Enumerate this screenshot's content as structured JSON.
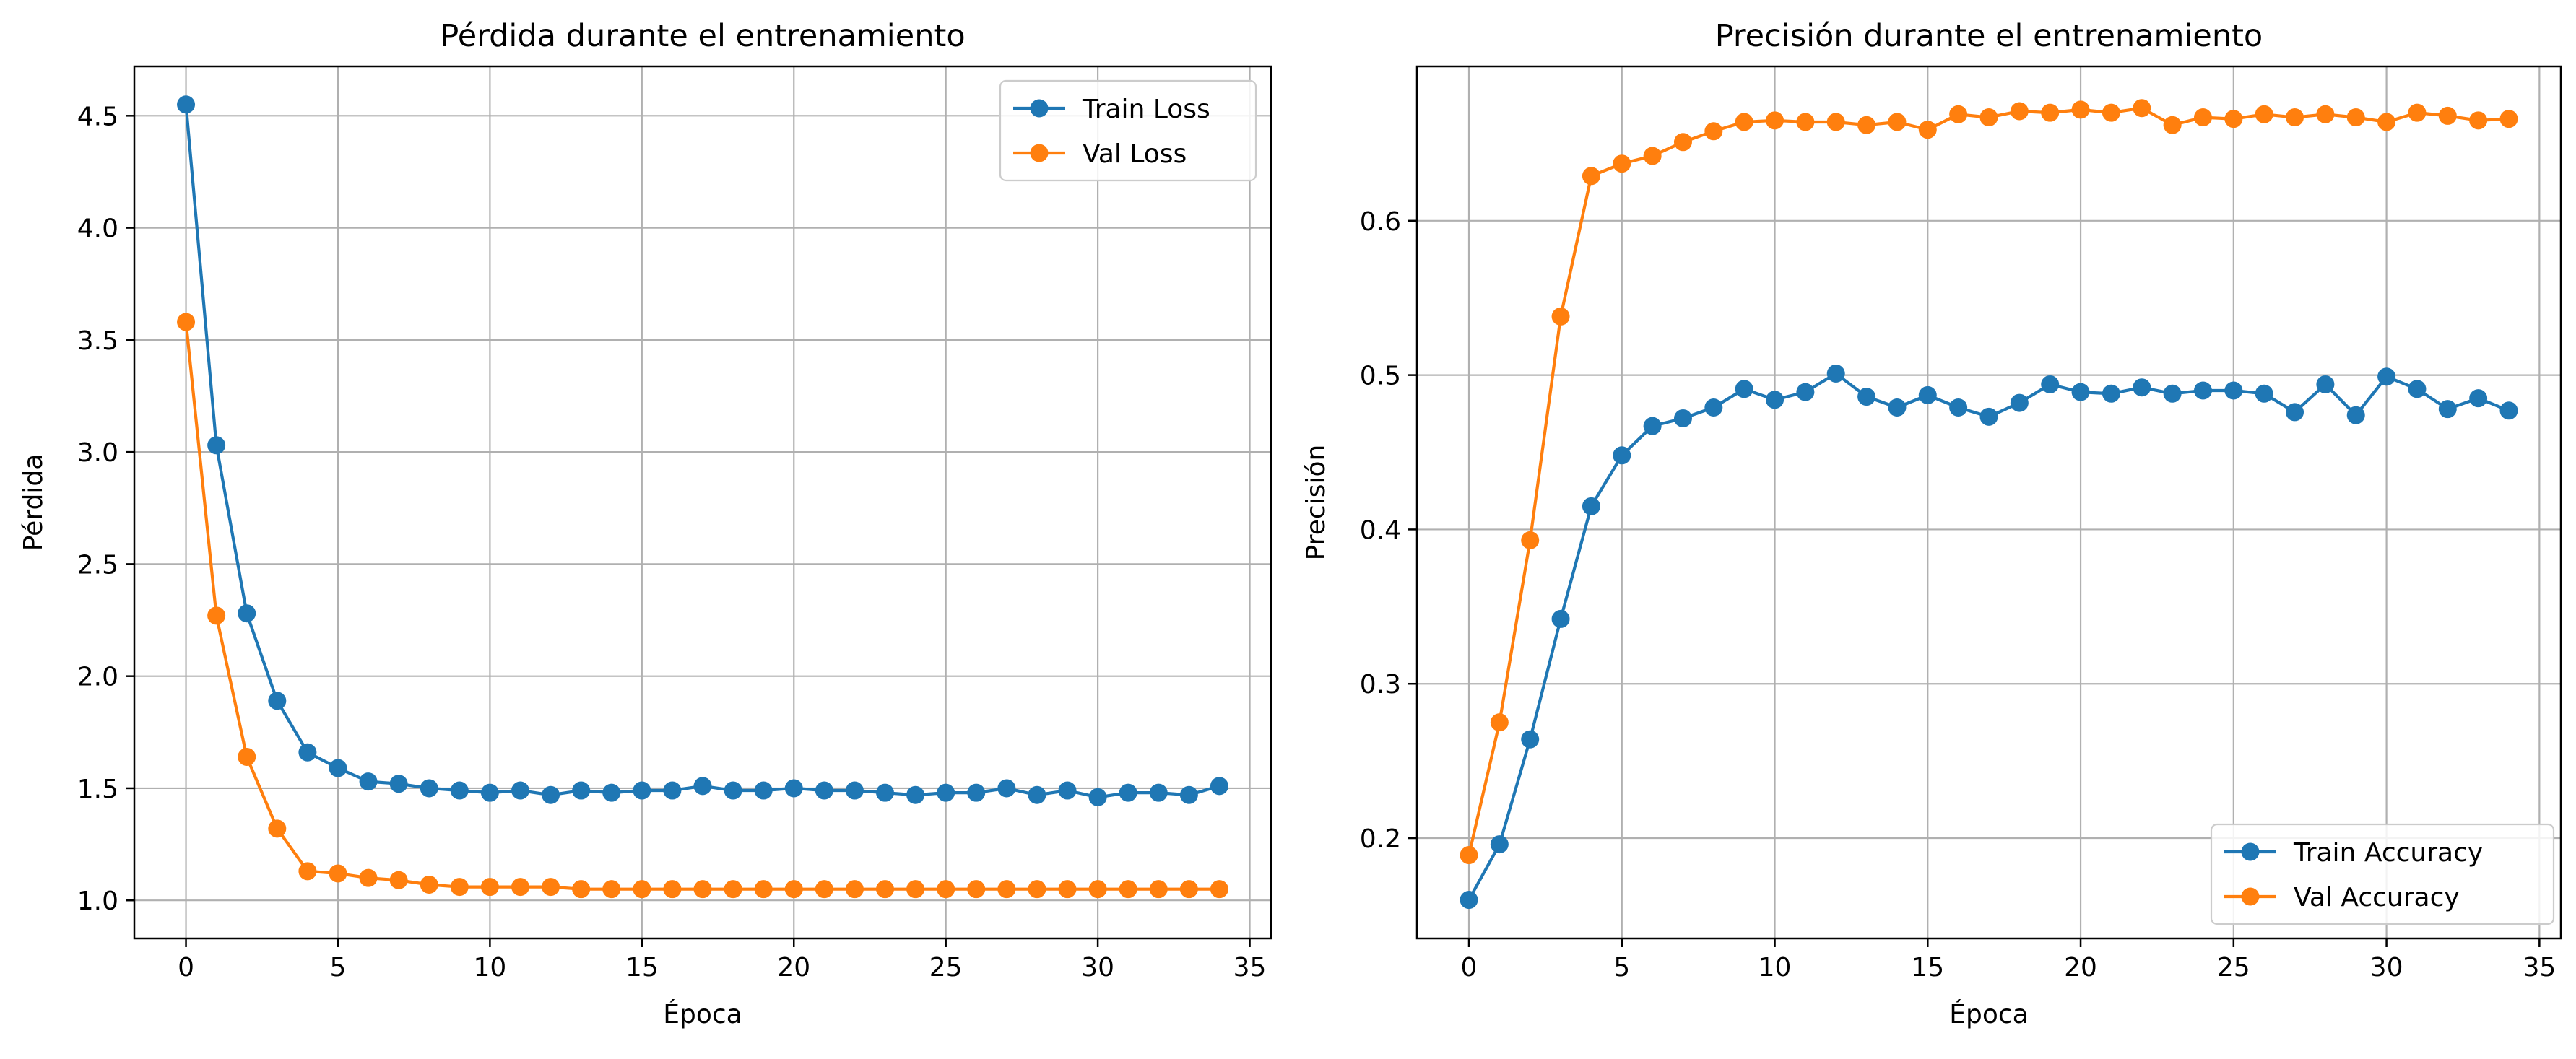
{
  "colors": {
    "train": "#1f77b4",
    "val": "#ff7f0e",
    "grid": "#b0b0b0"
  },
  "chart_data": [
    {
      "type": "line",
      "title": "Pérdida durante el entrenamiento",
      "xlabel": "Época",
      "ylabel": "Pérdida",
      "xlim": [
        -1.7,
        35.7
      ],
      "ylim": [
        0.83,
        4.72
      ],
      "xticks": [
        0,
        5,
        10,
        15,
        20,
        25,
        30,
        35
      ],
      "yticks": [
        1.0,
        1.5,
        2.0,
        2.5,
        3.0,
        3.5,
        4.0,
        4.5
      ],
      "grid": true,
      "legend_position": "top-right",
      "x": [
        0,
        1,
        2,
        3,
        4,
        5,
        6,
        7,
        8,
        9,
        10,
        11,
        12,
        13,
        14,
        15,
        16,
        17,
        18,
        19,
        20,
        21,
        22,
        23,
        24,
        25,
        26,
        27,
        28,
        29,
        30,
        31,
        32,
        33,
        34
      ],
      "series": [
        {
          "name": "Train Loss",
          "color": "#1f77b4",
          "values": [
            4.55,
            3.03,
            2.28,
            1.89,
            1.66,
            1.59,
            1.53,
            1.52,
            1.5,
            1.49,
            1.48,
            1.49,
            1.47,
            1.49,
            1.48,
            1.49,
            1.49,
            1.51,
            1.49,
            1.49,
            1.5,
            1.49,
            1.49,
            1.48,
            1.47,
            1.48,
            1.48,
            1.5,
            1.47,
            1.49,
            1.46,
            1.48,
            1.48,
            1.47,
            1.51
          ]
        },
        {
          "name": "Val Loss",
          "color": "#ff7f0e",
          "values": [
            3.58,
            2.27,
            1.64,
            1.32,
            1.13,
            1.12,
            1.1,
            1.09,
            1.07,
            1.06,
            1.06,
            1.06,
            1.06,
            1.05,
            1.05,
            1.05,
            1.05,
            1.05,
            1.05,
            1.05,
            1.05,
            1.05,
            1.05,
            1.05,
            1.05,
            1.05,
            1.05,
            1.05,
            1.05,
            1.05,
            1.05,
            1.05,
            1.05,
            1.05,
            1.05
          ]
        }
      ]
    },
    {
      "type": "line",
      "title": "Precisión durante el entrenamiento",
      "xlabel": "Época",
      "ylabel": "Precisión",
      "xlim": [
        -1.7,
        35.7
      ],
      "ylim": [
        0.135,
        0.7
      ],
      "xticks": [
        0,
        5,
        10,
        15,
        20,
        25,
        30,
        35
      ],
      "yticks": [
        0.2,
        0.3,
        0.4,
        0.5,
        0.6
      ],
      "grid": true,
      "legend_position": "bottom-right",
      "x": [
        0,
        1,
        2,
        3,
        4,
        5,
        6,
        7,
        8,
        9,
        10,
        11,
        12,
        13,
        14,
        15,
        16,
        17,
        18,
        19,
        20,
        21,
        22,
        23,
        24,
        25,
        26,
        27,
        28,
        29,
        30,
        31,
        32,
        33,
        34
      ],
      "series": [
        {
          "name": "Train Accuracy",
          "color": "#1f77b4",
          "values": [
            0.16,
            0.196,
            0.264,
            0.342,
            0.415,
            0.448,
            0.467,
            0.472,
            0.479,
            0.491,
            0.484,
            0.489,
            0.501,
            0.486,
            0.479,
            0.487,
            0.479,
            0.473,
            0.482,
            0.494,
            0.489,
            0.488,
            0.492,
            0.488,
            0.49,
            0.49,
            0.488,
            0.476,
            0.494,
            0.474,
            0.499,
            0.491,
            0.478,
            0.485,
            0.477
          ]
        },
        {
          "name": "Val Accuracy",
          "color": "#ff7f0e",
          "values": [
            0.189,
            0.275,
            0.393,
            0.538,
            0.629,
            0.637,
            0.642,
            0.651,
            0.658,
            0.664,
            0.665,
            0.664,
            0.664,
            0.662,
            0.664,
            0.659,
            0.669,
            0.667,
            0.671,
            0.67,
            0.672,
            0.67,
            0.673,
            0.662,
            0.667,
            0.666,
            0.669,
            0.667,
            0.669,
            0.667,
            0.664,
            0.67,
            0.668,
            0.665,
            0.666
          ]
        }
      ]
    }
  ]
}
